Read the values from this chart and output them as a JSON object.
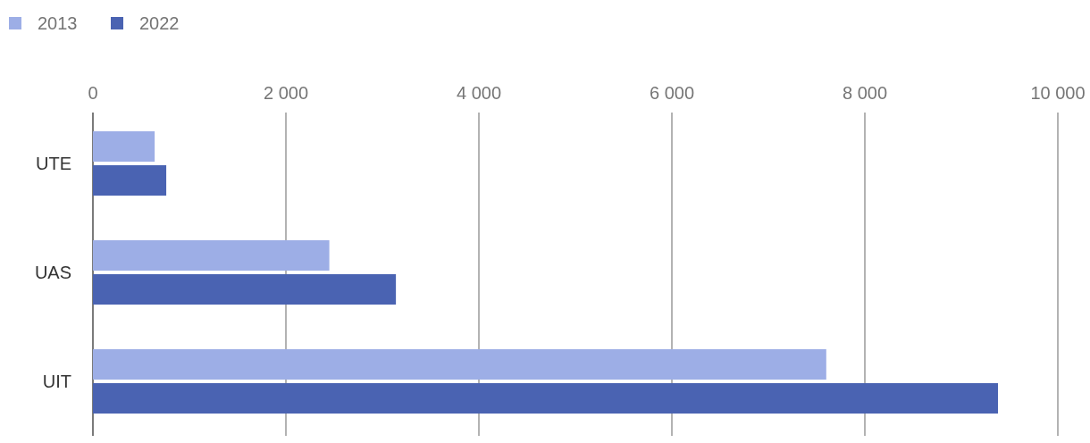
{
  "chart_data": {
    "type": "bar",
    "orientation": "horizontal",
    "categories": [
      "UTE",
      "UAS",
      "UIT"
    ],
    "series": [
      {
        "name": "2013",
        "color": "#9daee6",
        "values": [
          640,
          2450,
          7600
        ]
      },
      {
        "name": "2022",
        "color": "#4a63b2",
        "values": [
          760,
          3140,
          9380
        ]
      }
    ],
    "xlim": [
      0,
      10000
    ],
    "xticks": [
      0,
      {
        "value": 2000,
        "label": "2 000"
      },
      {
        "value": 4000,
        "label": "4 000"
      },
      {
        "value": 6000,
        "label": "6 000"
      },
      {
        "value": 8000,
        "label": "8 000"
      },
      {
        "value": 10000,
        "label": "10 000"
      }
    ],
    "grid": "x",
    "legend": "top left"
  }
}
